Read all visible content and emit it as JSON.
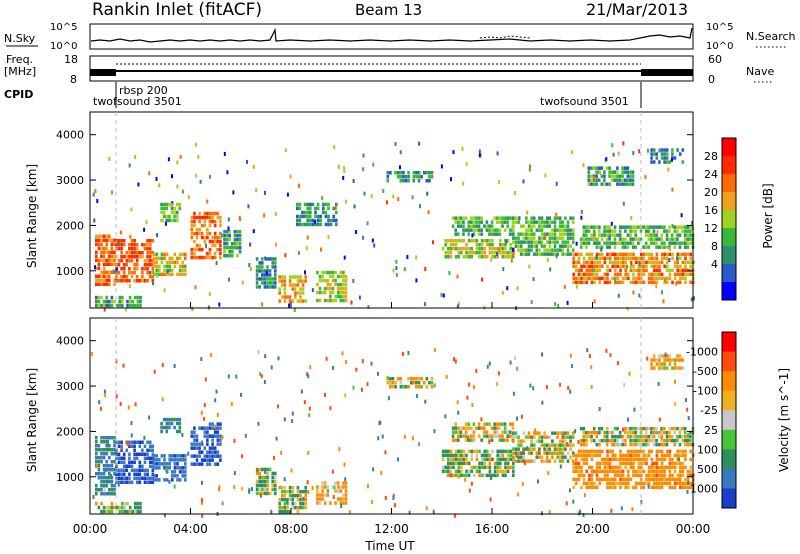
{
  "header": {
    "station": "Rankin Inlet (fitACF)",
    "beam": "Beam 13",
    "date": "21/Mar/2013"
  },
  "chart_data": [
    {
      "type": "line",
      "panel": "noise",
      "left_label": "N.Sky",
      "right_label": "N.Search",
      "left_ticks": [
        "10^5",
        "10^0"
      ],
      "right_ticks": [
        "10^5",
        "10^0"
      ],
      "yscale": "log"
    },
    {
      "type": "line",
      "panel": "frequency",
      "left_label": "Freq.",
      "left_unit": "[MHz]",
      "right_label": "Nave",
      "left_ticks": [
        18,
        8
      ],
      "right_ticks": [
        60,
        0
      ],
      "cpid_label": "CPID",
      "cpid_segments": [
        {
          "label": "twofsound 3501",
          "start_ut": 0.0,
          "end_ut": 1.0
        },
        {
          "label": "rbsp 200",
          "start_ut": 1.0,
          "end_ut": 22.0
        },
        {
          "label": "twofsound 3501",
          "start_ut": 22.0,
          "end_ut": 24.0
        }
      ]
    },
    {
      "type": "heatmap",
      "panel": "power",
      "ylabel": "Slant Range [km]",
      "yticks": [
        1000,
        2000,
        3000,
        4000
      ],
      "ylim": [
        180,
        4500
      ],
      "colorbar_label": "Power [dB]",
      "colorbar_ticks": [
        4,
        8,
        12,
        16,
        20,
        24,
        28
      ],
      "colorbar_colors": [
        "#0000ff",
        "#2a59c8",
        "#2e8f6a",
        "#38b838",
        "#9fd21e",
        "#f0a020",
        "#ff6a00",
        "#ff2a00",
        "#ff0000"
      ],
      "cells": [
        [
          0.2,
          1.0,
          700,
          1800,
          26
        ],
        [
          1.0,
          2.5,
          800,
          1700,
          28
        ],
        [
          2.5,
          3.8,
          900,
          1400,
          20
        ],
        [
          2.8,
          3.6,
          2100,
          2500,
          14
        ],
        [
          4.0,
          5.2,
          1300,
          2300,
          26
        ],
        [
          5.3,
          6.0,
          1300,
          1900,
          12
        ],
        [
          6.6,
          7.4,
          600,
          1300,
          10
        ],
        [
          7.5,
          8.6,
          300,
          900,
          22
        ],
        [
          9.0,
          10.2,
          300,
          1000,
          18
        ],
        [
          8.2,
          9.8,
          2000,
          2500,
          10
        ],
        [
          11.8,
          13.6,
          3000,
          3200,
          10
        ],
        [
          14.0,
          16.8,
          1300,
          1700,
          18
        ],
        [
          14.4,
          16.8,
          1800,
          2200,
          14
        ],
        [
          16.8,
          19.2,
          1400,
          2200,
          14
        ],
        [
          19.2,
          24.0,
          700,
          1400,
          24
        ],
        [
          19.5,
          24.0,
          1500,
          2000,
          14
        ],
        [
          19.8,
          21.6,
          2900,
          3300,
          12
        ],
        [
          22.3,
          23.6,
          3400,
          3700,
          10
        ],
        [
          0.2,
          2.0,
          200,
          450,
          12
        ]
      ]
    },
    {
      "type": "heatmap",
      "panel": "velocity",
      "xlabel": "Time UT",
      "ylabel": "Slant Range [km]",
      "yticks": [
        1000,
        2000,
        3000,
        4000
      ],
      "ylim": [
        180,
        4500
      ],
      "xticks": [
        "00:00",
        "04:00",
        "08:00",
        "12:00",
        "16:00",
        "20:00",
        "00:00"
      ],
      "xlim": [
        0,
        24
      ],
      "colorbar_label": "Velocity [m s^-1]",
      "colorbar_ticks": [
        1000,
        500,
        100,
        25,
        -25,
        -100,
        -500,
        -1000
      ],
      "colorbar_colors": [
        "#1a3ecc",
        "#3a78c0",
        "#2e8f5a",
        "#48c43a",
        "#c8c8c8",
        "#f0b020",
        "#ff8a00",
        "#ff4a10",
        "#ff0000"
      ],
      "cells": [
        [
          0.2,
          1.0,
          600,
          1900,
          500
        ],
        [
          1.0,
          2.5,
          900,
          1800,
          1000
        ],
        [
          2.5,
          3.8,
          900,
          1500,
          800
        ],
        [
          2.8,
          3.6,
          2000,
          2300,
          500
        ],
        [
          4.0,
          5.2,
          1300,
          2200,
          1000
        ],
        [
          6.6,
          7.4,
          600,
          1200,
          60
        ],
        [
          7.5,
          8.6,
          200,
          800,
          60
        ],
        [
          9.0,
          10.2,
          400,
          900,
          -200
        ],
        [
          11.8,
          13.6,
          3000,
          3200,
          0
        ],
        [
          14.0,
          16.8,
          1000,
          1600,
          100
        ],
        [
          14.4,
          16.8,
          1800,
          2200,
          0
        ],
        [
          16.8,
          19.2,
          1300,
          2000,
          0
        ],
        [
          19.2,
          24.0,
          800,
          1600,
          -300
        ],
        [
          19.5,
          24.0,
          1700,
          2100,
          0
        ],
        [
          22.3,
          23.6,
          3400,
          3700,
          -200
        ],
        [
          0.2,
          2.0,
          200,
          450,
          100
        ]
      ]
    }
  ]
}
